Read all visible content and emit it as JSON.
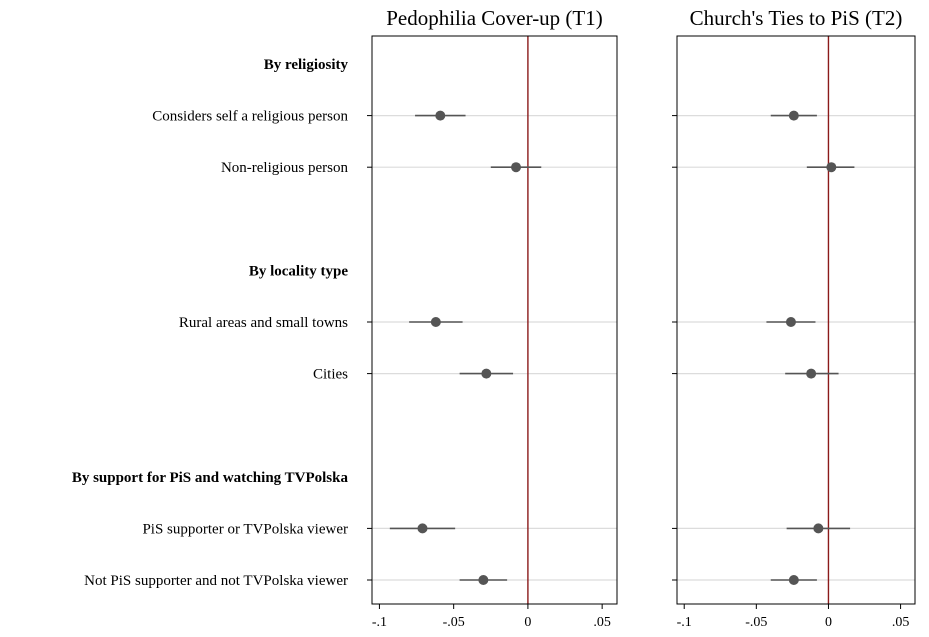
{
  "chart_data": {
    "type": "scatter",
    "subtype": "coefficient-plot",
    "xlim": [
      -0.105,
      0.06
    ],
    "xticks": [
      {
        "value": -0.1,
        "label": "-.1"
      },
      {
        "value": -0.05,
        "label": "-.05"
      },
      {
        "value": 0,
        "label": "0"
      },
      {
        "value": 0.05,
        "label": ".05"
      }
    ],
    "reference_line": {
      "x": 0,
      "color": "#8b1a1a"
    },
    "colors": {
      "marker": "#555555",
      "ci": "#555555",
      "gridline": "#dcdcdc",
      "frame": "#000000"
    },
    "rows": [
      {
        "label": "By religiosity",
        "header": true
      },
      {
        "label": "Considers self a religious person",
        "header": false
      },
      {
        "label": "Non-religious person",
        "header": false
      },
      {
        "label": "",
        "spacer": true
      },
      {
        "label": "By locality type",
        "header": true
      },
      {
        "label": "Rural areas and small towns",
        "header": false
      },
      {
        "label": "Cities",
        "header": false
      },
      {
        "label": "",
        "spacer": true
      },
      {
        "label": "By support for PiS and watching TVPolska",
        "header": true
      },
      {
        "label": "PiS supporter or TVPolska viewer",
        "header": false
      },
      {
        "label": "Not PiS supporter and not TVPolska viewer",
        "header": false
      }
    ],
    "panels": [
      {
        "title": "Pedophilia Cover-up (T1)",
        "points": [
          {
            "row": 1,
            "estimate": -0.059,
            "ci": [
              -0.076,
              -0.042
            ]
          },
          {
            "row": 2,
            "estimate": -0.008,
            "ci": [
              -0.025,
              0.009
            ]
          },
          {
            "row": 5,
            "estimate": -0.062,
            "ci": [
              -0.08,
              -0.044
            ]
          },
          {
            "row": 6,
            "estimate": -0.028,
            "ci": [
              -0.046,
              -0.01
            ]
          },
          {
            "row": 9,
            "estimate": -0.071,
            "ci": [
              -0.093,
              -0.049
            ]
          },
          {
            "row": 10,
            "estimate": -0.03,
            "ci": [
              -0.046,
              -0.014
            ]
          }
        ]
      },
      {
        "title": "Church's Ties to PiS (T2)",
        "points": [
          {
            "row": 1,
            "estimate": -0.024,
            "ci": [
              -0.04,
              -0.008
            ]
          },
          {
            "row": 2,
            "estimate": 0.002,
            "ci": [
              -0.015,
              0.018
            ]
          },
          {
            "row": 5,
            "estimate": -0.026,
            "ci": [
              -0.043,
              -0.009
            ]
          },
          {
            "row": 6,
            "estimate": -0.012,
            "ci": [
              -0.03,
              0.007
            ]
          },
          {
            "row": 9,
            "estimate": -0.007,
            "ci": [
              -0.029,
              0.015
            ]
          },
          {
            "row": 10,
            "estimate": -0.024,
            "ci": [
              -0.04,
              -0.008
            ]
          }
        ]
      }
    ]
  }
}
